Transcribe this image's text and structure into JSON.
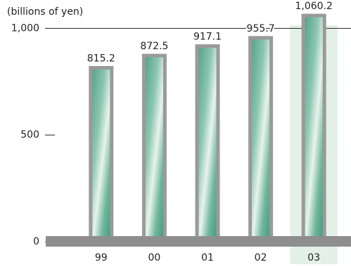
{
  "chart_data": {
    "type": "bar",
    "y_label": "(billions of yen)",
    "categories": [
      "99",
      "00",
      "01",
      "02",
      "03"
    ],
    "values": [
      815.2,
      872.5,
      917.1,
      955.7,
      1060.2
    ],
    "value_labels": [
      "815.2",
      "872.5",
      "917.1",
      "955.7",
      "1,060.2"
    ],
    "color": "#5fae94",
    "highlight": "03",
    "highlight_color": "#e3f1e8",
    "ylim": [
      0,
      1100
    ],
    "yticks": [
      0,
      500,
      {
        "value": 1000,
        "label": "1,000"
      }
    ]
  }
}
